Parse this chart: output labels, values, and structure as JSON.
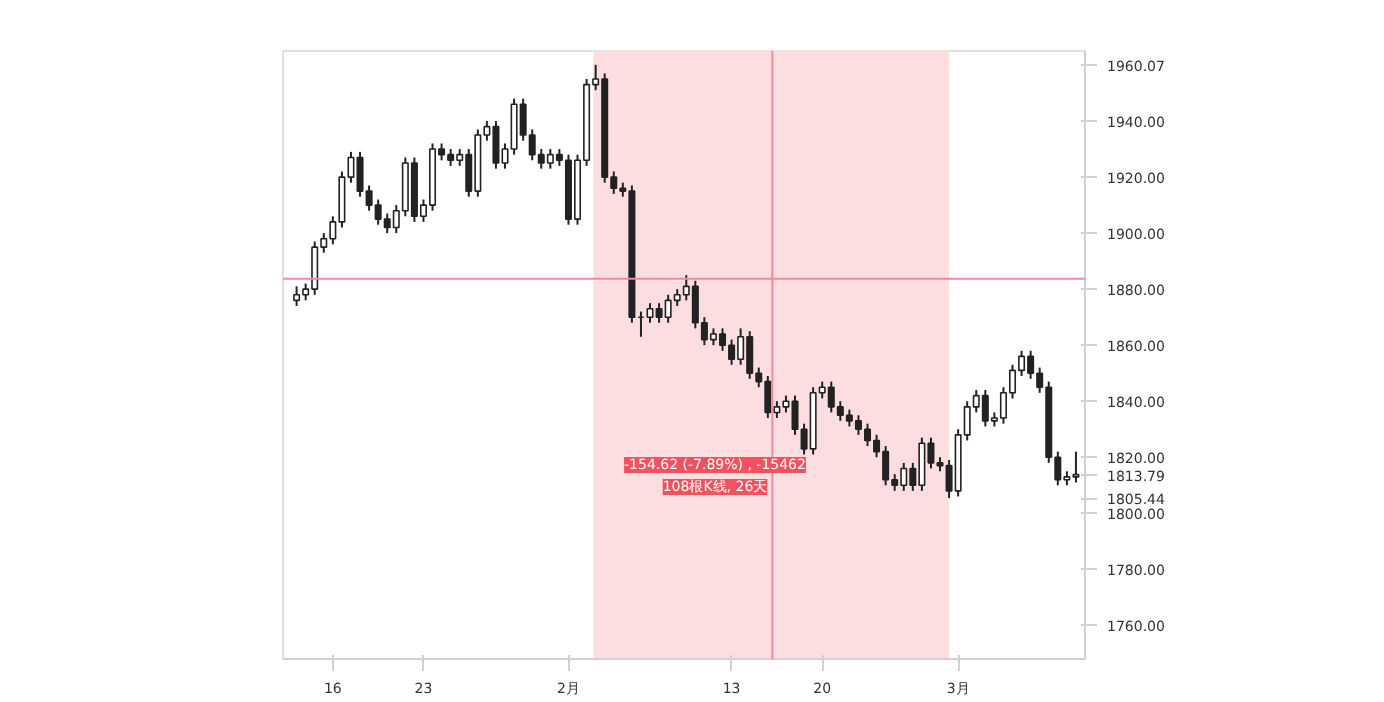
{
  "chart_data": {
    "type": "candlestick",
    "color": "#222222",
    "categories": [
      null,
      null,
      null,
      null,
      "16",
      null,
      null,
      null,
      null,
      null,
      null,
      null,
      null,
      null,
      "23",
      null,
      null,
      null,
      null,
      null,
      null,
      null,
      null,
      null,
      null,
      null,
      null,
      null,
      null,
      null,
      "2月",
      null,
      null,
      null,
      null,
      null,
      null,
      null,
      null,
      null,
      null,
      null,
      null,
      null,
      null,
      null,
      null,
      null,
      "13",
      null,
      null,
      null,
      null,
      null,
      null,
      null,
      null,
      null,
      "20",
      null,
      null,
      null,
      null,
      null,
      null,
      null,
      null,
      null,
      null,
      null,
      null,
      null,
      null,
      "3月",
      null,
      null,
      null,
      null,
      null,
      null,
      null,
      null,
      null,
      null,
      null,
      null,
      null
    ],
    "ohlc": [
      [
        1876,
        1881,
        1874,
        1878
      ],
      [
        1878,
        1882,
        1876,
        1880
      ],
      [
        1880,
        1897,
        1878,
        1895
      ],
      [
        1895,
        1900,
        1893,
        1898
      ],
      [
        1898,
        1906,
        1896,
        1904
      ],
      [
        1904,
        1922,
        1902,
        1920
      ],
      [
        1920,
        1929,
        1918,
        1927
      ],
      [
        1927,
        1929,
        1913,
        1915
      ],
      [
        1915,
        1917,
        1908,
        1910
      ],
      [
        1910,
        1912,
        1903,
        1905
      ],
      [
        1905,
        1907,
        1900,
        1902
      ],
      [
        1902,
        1910,
        1900,
        1908
      ],
      [
        1908,
        1927,
        1906,
        1925
      ],
      [
        1925,
        1927,
        1904,
        1906
      ],
      [
        1906,
        1912,
        1904,
        1910
      ],
      [
        1910,
        1932,
        1908,
        1930
      ],
      [
        1930,
        1932,
        1926,
        1928
      ],
      [
        1928,
        1930,
        1924,
        1926
      ],
      [
        1926,
        1930,
        1924,
        1928
      ],
      [
        1928,
        1930,
        1913,
        1915
      ],
      [
        1915,
        1937,
        1913,
        1935
      ],
      [
        1935,
        1940,
        1933,
        1938
      ],
      [
        1938,
        1940,
        1923,
        1925
      ],
      [
        1925,
        1932,
        1923,
        1930
      ],
      [
        1930,
        1948,
        1928,
        1946
      ],
      [
        1946,
        1948,
        1933,
        1935
      ],
      [
        1935,
        1937,
        1926,
        1928
      ],
      [
        1928,
        1930,
        1923,
        1925
      ],
      [
        1925,
        1930,
        1923,
        1928
      ],
      [
        1928,
        1930,
        1924,
        1926
      ],
      [
        1926,
        1928,
        1903,
        1905
      ],
      [
        1905,
        1928,
        1903,
        1926
      ],
      [
        1926,
        1955,
        1924,
        1953
      ],
      [
        1953,
        1960.07,
        1951,
        1955
      ],
      [
        1955,
        1957,
        1918,
        1920
      ],
      [
        1920,
        1922,
        1914,
        1916
      ],
      [
        1916,
        1918,
        1913,
        1915
      ],
      [
        1915,
        1917,
        1868,
        1870
      ],
      [
        1870,
        1872,
        1863,
        1870
      ],
      [
        1870,
        1875,
        1868,
        1873
      ],
      [
        1873,
        1875,
        1868,
        1870
      ],
      [
        1870,
        1878,
        1868,
        1876
      ],
      [
        1876,
        1880,
        1874,
        1878
      ],
      [
        1878,
        1885,
        1876,
        1881
      ],
      [
        1881,
        1883,
        1866,
        1868
      ],
      [
        1868,
        1870,
        1860,
        1862
      ],
      [
        1862,
        1866,
        1860,
        1864
      ],
      [
        1864,
        1866,
        1858,
        1860
      ],
      [
        1860,
        1862,
        1853,
        1855
      ],
      [
        1855,
        1866,
        1853,
        1863
      ],
      [
        1863,
        1865,
        1848,
        1850
      ],
      [
        1850,
        1852,
        1845,
        1847
      ],
      [
        1847,
        1849,
        1834,
        1836
      ],
      [
        1836,
        1840,
        1834,
        1838
      ],
      [
        1838,
        1842,
        1836,
        1840
      ],
      [
        1840,
        1842,
        1828,
        1830
      ],
      [
        1830,
        1832,
        1821,
        1823
      ],
      [
        1823,
        1845,
        1821,
        1843
      ],
      [
        1843,
        1847,
        1841,
        1845
      ],
      [
        1845,
        1847,
        1836,
        1838
      ],
      [
        1838,
        1840,
        1833,
        1835
      ],
      [
        1835,
        1837,
        1831,
        1833
      ],
      [
        1833,
        1835,
        1828,
        1830
      ],
      [
        1830,
        1832,
        1824,
        1826
      ],
      [
        1826,
        1828,
        1820,
        1822
      ],
      [
        1822,
        1824,
        1810,
        1812
      ],
      [
        1812,
        1814,
        1808,
        1810
      ],
      [
        1810,
        1818,
        1808,
        1816
      ],
      [
        1816,
        1818,
        1808,
        1810
      ],
      [
        1810,
        1827,
        1808,
        1825
      ],
      [
        1825,
        1827,
        1816,
        1818
      ],
      [
        1818,
        1820,
        1815,
        1817
      ],
      [
        1817,
        1819,
        1805.44,
        1808
      ],
      [
        1808,
        1830,
        1806,
        1828
      ],
      [
        1828,
        1840,
        1826,
        1838
      ],
      [
        1838,
        1844,
        1836,
        1842
      ],
      [
        1842,
        1844,
        1831,
        1833
      ],
      [
        1833,
        1836,
        1831,
        1834
      ],
      [
        1834,
        1845,
        1832,
        1843
      ],
      [
        1843,
        1853,
        1841,
        1851
      ],
      [
        1851,
        1858,
        1849,
        1856
      ],
      [
        1856,
        1858,
        1848,
        1850
      ],
      [
        1850,
        1852,
        1843,
        1845
      ],
      [
        1845,
        1847,
        1818,
        1820
      ],
      [
        1820,
        1822,
        1810,
        1812
      ],
      [
        1812,
        1815,
        1810,
        1813
      ],
      [
        1813,
        1822,
        1811,
        1813.79
      ]
    ],
    "ylim": [
      1748,
      1965
    ],
    "yticks": [
      {
        "value": 1760,
        "label": "1760.00"
      },
      {
        "value": 1780,
        "label": "1780.00"
      },
      {
        "value": 1800,
        "label": "1800.00"
      },
      {
        "value": 1820,
        "label": "1820.00"
      },
      {
        "value": 1840,
        "label": "1840.00"
      },
      {
        "value": 1860,
        "label": "1860.00"
      },
      {
        "value": 1880,
        "label": "1880.00"
      },
      {
        "value": 1900,
        "label": "1900.00"
      },
      {
        "value": 1920,
        "label": "1920.00"
      },
      {
        "value": 1940,
        "label": "1940.00"
      },
      1960.07,
      1813.79,
      1805.44
    ],
    "ref_lines": [
      {
        "axis": "y",
        "value": 1883.7,
        "color": "#f28b95"
      }
    ],
    "annotations": [
      "-154.62 (-7.89%) , -15462",
      "108根K线, 26天"
    ],
    "grid": false
  }
}
